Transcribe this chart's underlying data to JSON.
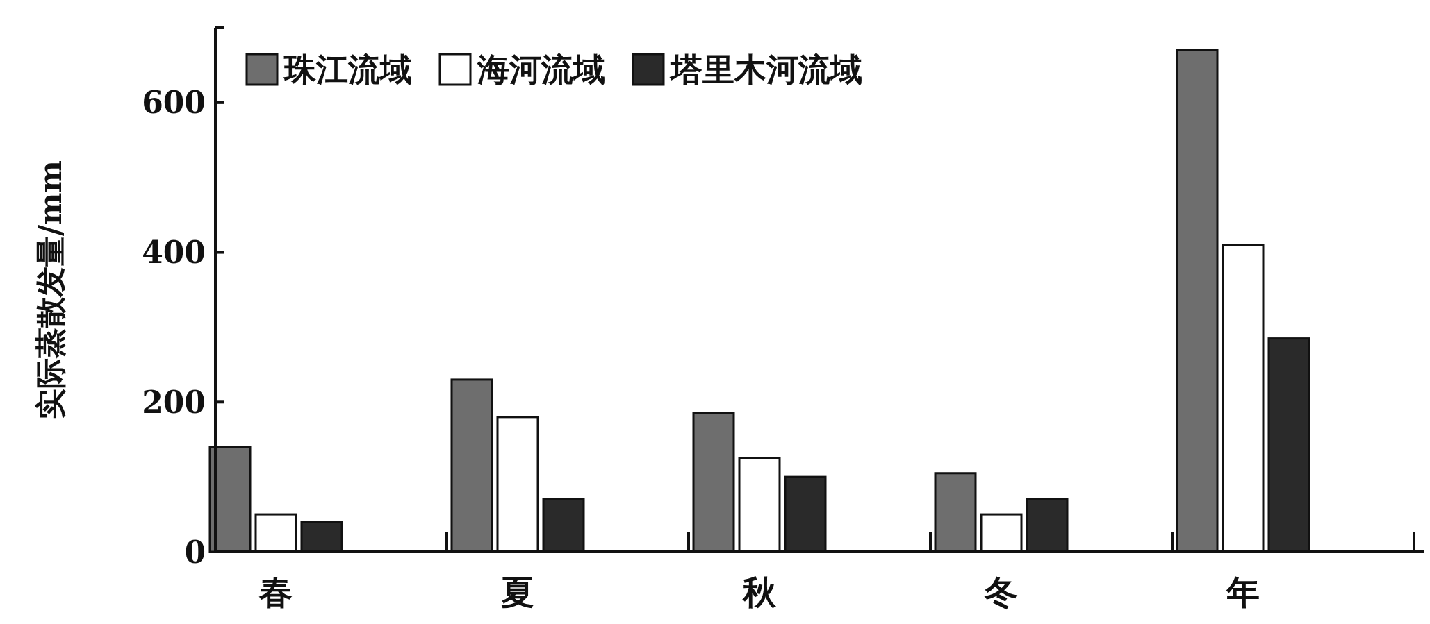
{
  "chart_data": {
    "type": "bar",
    "ylabel": "实际蒸散发量/mm",
    "categories": [
      "春",
      "夏",
      "秋",
      "冬",
      "年"
    ],
    "series": [
      {
        "name": "珠江流域",
        "color": "#6e6e6e",
        "values": [
          140,
          230,
          185,
          105,
          670
        ]
      },
      {
        "name": "海河流域",
        "color": "#ffffff",
        "values": [
          50,
          180,
          125,
          50,
          410
        ]
      },
      {
        "name": "塔里木河流域",
        "color": "#2a2a2a",
        "values": [
          40,
          70,
          100,
          70,
          285
        ]
      }
    ],
    "ylim": [
      0,
      700
    ],
    "yticks": [
      0,
      200,
      400,
      600
    ],
    "grid": false,
    "legend": "top left"
  }
}
